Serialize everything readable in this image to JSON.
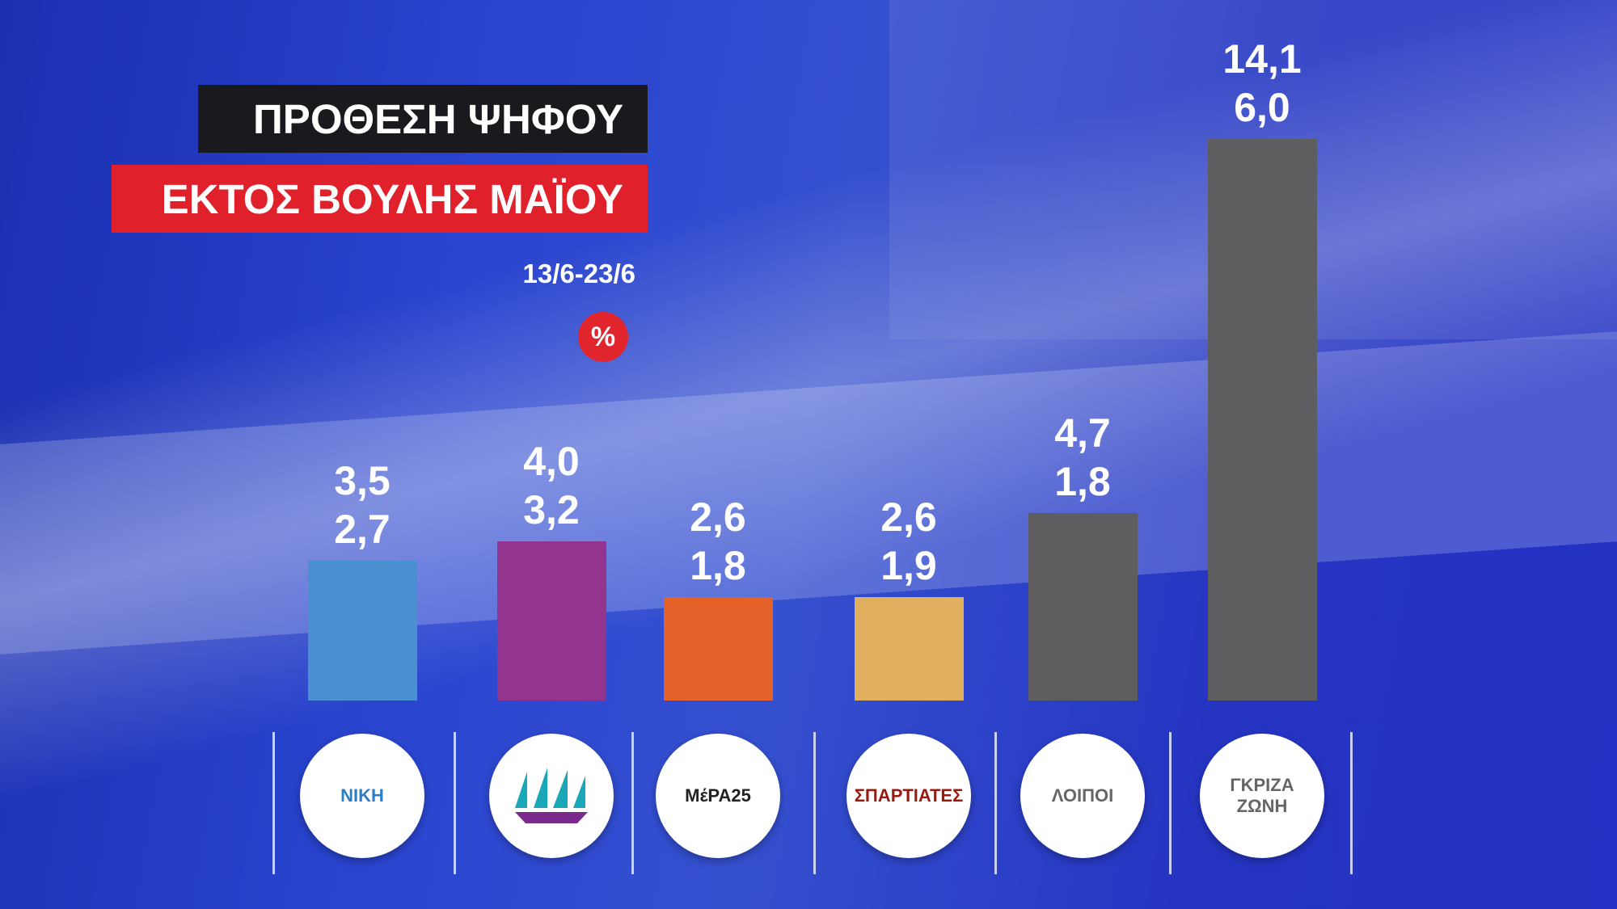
{
  "title": "ΠΡΟΘΕΣΗ ΨΗΦΟΥ",
  "subtitle": "ΕΚΤΟΣ ΒΟΥΛΗΣ ΜΑΪΟΥ",
  "date": "13/6-23/6",
  "unit": "%",
  "chart_data": {
    "type": "bar",
    "categories": [
      "ΝΙΚΗ",
      null,
      "ΜέΡΑ25",
      "ΣΠΑΡΤΙΑΤΕΣ",
      "ΛΟΙΠΟΙ",
      "ΓΚΡΙΖΑ ΖΩΝΗ"
    ],
    "category_colors": [
      "#2a7fc8",
      null,
      "#222222",
      "#9a1a10",
      "#666666",
      "#666666"
    ],
    "series": [
      {
        "values": [
          3.5,
          4.0,
          2.6,
          2.6,
          4.7,
          14.1
        ],
        "value_labels": [
          "3,5",
          "4,0",
          "2,6",
          "2,6",
          "4,7",
          "14,1"
        ],
        "colors": [
          "#4a8fd0",
          "#93358f",
          "#e4612a",
          "#e0b05e",
          "#5e5e60",
          "#5e5e60"
        ]
      },
      {
        "values": [
          2.7,
          3.2,
          1.8,
          1.9,
          1.8,
          6.0
        ],
        "value_labels": [
          "2,7",
          "3,2",
          "1,8",
          "1,9",
          "1,8",
          "6,0"
        ]
      }
    ]
  }
}
